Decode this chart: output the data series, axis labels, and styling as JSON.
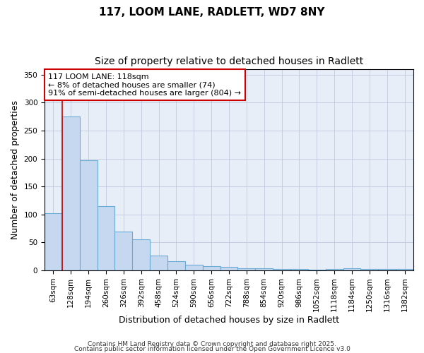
{
  "title1": "117, LOOM LANE, RADLETT, WD7 8NY",
  "title2": "Size of property relative to detached houses in Radlett",
  "xlabel": "Distribution of detached houses by size in Radlett",
  "ylabel": "Number of detached properties",
  "bar_labels": [
    "63sqm",
    "128sqm",
    "194sqm",
    "260sqm",
    "326sqm",
    "392sqm",
    "458sqm",
    "524sqm",
    "590sqm",
    "656sqm",
    "722sqm",
    "788sqm",
    "854sqm",
    "920sqm",
    "986sqm",
    "1052sqm",
    "1118sqm",
    "1184sqm",
    "1250sqm",
    "1316sqm",
    "1382sqm"
  ],
  "bar_values": [
    102,
    275,
    197,
    115,
    69,
    55,
    27,
    17,
    10,
    8,
    6,
    4,
    4,
    2,
    2,
    1,
    2,
    4,
    3,
    3,
    2
  ],
  "bar_color": "#c5d8f0",
  "bar_edge_color": "#6aaad4",
  "ylim": [
    0,
    360
  ],
  "yticks": [
    0,
    50,
    100,
    150,
    200,
    250,
    300,
    350
  ],
  "annotation_text": "117 LOOM LANE: 118sqm\n← 8% of detached houses are smaller (74)\n91% of semi-detached houses are larger (804) →",
  "annotation_box_facecolor": "#ffffff",
  "annotation_box_edgecolor": "#cc0000",
  "red_line_color": "#cc0000",
  "footer1": "Contains HM Land Registry data © Crown copyright and database right 2025.",
  "footer2": "Contains public sector information licensed under the Open Government Licence v3.0",
  "background_color": "#ffffff",
  "plot_bg_color": "#e8eef8",
  "grid_color": "#c0c8de",
  "title1_fontsize": 11,
  "title2_fontsize": 10,
  "axis_label_fontsize": 9,
  "tick_fontsize": 7.5,
  "annotation_fontsize": 8,
  "footer_fontsize": 6.5
}
